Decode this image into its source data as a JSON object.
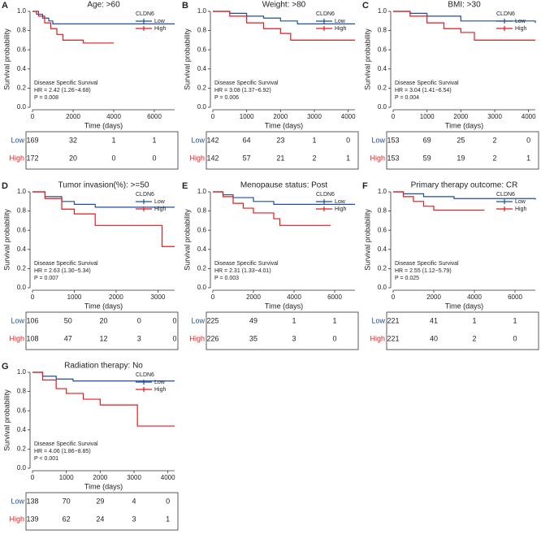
{
  "chart_data": [
    {
      "type": "line",
      "step": true,
      "label": "A",
      "title": "Age: >60",
      "xlabel": "Time (days)",
      "ylabel": "Survival probability",
      "legend_title": "CLDN6",
      "annotations": [
        "Disease Specific Survival",
        "HR = 2.42 (1.26−4.68)",
        "P = 0.008"
      ],
      "xlim": [
        0,
        7000
      ],
      "xticks": [
        0,
        2000,
        4000,
        6000
      ],
      "ylim": [
        0,
        1
      ],
      "yticks": [
        {
          "value": 0,
          "label": "0.0"
        },
        0.2,
        0.4,
        0.6,
        0.8,
        {
          "value": 1,
          "label": "1.0"
        }
      ],
      "series": [
        {
          "name": "Low",
          "color": "#1f4e9c",
          "x": [
            0,
            200,
            500,
            800,
            1000,
            7000
          ],
          "values": [
            1,
            0.97,
            0.93,
            0.9,
            0.87,
            0.87
          ]
        },
        {
          "name": "High",
          "color": "#e41a1c",
          "x": [
            0,
            300,
            600,
            900,
            1200,
            1500,
            2500,
            4000
          ],
          "values": [
            1,
            0.95,
            0.88,
            0.82,
            0.76,
            0.7,
            0.67,
            0.67
          ]
        }
      ],
      "risk_table": {
        "rows": [
          {
            "name": "Low",
            "values": [
              169,
              32,
              1,
              1
            ]
          },
          {
            "name": "High",
            "values": [
              172,
              20,
              0,
              0
            ]
          }
        ]
      }
    },
    {
      "type": "line",
      "step": true,
      "label": "B",
      "title": "Weight: >80",
      "xlabel": "Time (days)",
      "ylabel": "Survival probability",
      "legend_title": "CLDN6",
      "annotations": [
        "Disease Specific Survival",
        "HR = 3.08 (1.37−6.92)",
        "P = 0.006"
      ],
      "xlim": [
        0,
        4200
      ],
      "xticks": [
        0,
        1000,
        2000,
        3000,
        4000
      ],
      "ylim": [
        0,
        1
      ],
      "yticks": [
        {
          "value": 0,
          "label": "0.0"
        },
        0.2,
        0.4,
        0.6,
        0.8,
        {
          "value": 1,
          "label": "1.0"
        }
      ],
      "series": [
        {
          "name": "Low",
          "color": "#1f4e9c",
          "x": [
            0,
            500,
            1000,
            1500,
            2000,
            2500,
            4200
          ],
          "values": [
            1,
            0.98,
            0.95,
            0.93,
            0.9,
            0.87,
            0.87
          ]
        },
        {
          "name": "High",
          "color": "#e41a1c",
          "x": [
            0,
            500,
            1000,
            1500,
            2000,
            2300,
            4200
          ],
          "values": [
            1,
            0.95,
            0.88,
            0.82,
            0.77,
            0.7,
            0.7
          ]
        }
      ],
      "risk_table": {
        "rows": [
          {
            "name": "Low",
            "values": [
              142,
              64,
              23,
              1,
              0
            ]
          },
          {
            "name": "High",
            "values": [
              142,
              57,
              21,
              2,
              1
            ]
          }
        ]
      }
    },
    {
      "type": "line",
      "step": true,
      "label": "C",
      "title": "BMI: >30",
      "xlabel": "Time (days)",
      "ylabel": "Survival probability",
      "legend_title": "CLDN6",
      "annotations": [
        "Disease Specific Survival",
        "HR = 3.04 (1.41−6.54)",
        "P = 0.004"
      ],
      "xlim": [
        0,
        4200
      ],
      "xticks": [
        0,
        1000,
        2000,
        3000,
        4000
      ],
      "ylim": [
        0,
        1
      ],
      "yticks": [
        {
          "value": 0,
          "label": "0.0"
        },
        0.2,
        0.4,
        0.6,
        0.8,
        {
          "value": 1,
          "label": "1.0"
        }
      ],
      "series": [
        {
          "name": "Low",
          "color": "#1f4e9c",
          "x": [
            0,
            500,
            1000,
            2000,
            4200
          ],
          "values": [
            1,
            0.98,
            0.95,
            0.9,
            0.88
          ]
        },
        {
          "name": "High",
          "color": "#e41a1c",
          "x": [
            0,
            500,
            1000,
            1500,
            2000,
            2400,
            4200
          ],
          "values": [
            1,
            0.95,
            0.88,
            0.82,
            0.78,
            0.7,
            0.7
          ]
        }
      ],
      "risk_table": {
        "rows": [
          {
            "name": "Low",
            "values": [
              153,
              69,
              25,
              2,
              0
            ]
          },
          {
            "name": "High",
            "values": [
              153,
              59,
              19,
              2,
              1
            ]
          }
        ]
      }
    },
    {
      "type": "line",
      "step": true,
      "label": "D",
      "title": "Tumor invasion(%): >=50",
      "xlabel": "Time (days)",
      "ylabel": "Survival probability",
      "legend_title": "CLDN6",
      "annotations": [
        "Disease Specific Survival",
        "HR = 2.63 (1.30−5.34)",
        "P = 0.007"
      ],
      "xlim": [
        0,
        3400
      ],
      "xticks": [
        0,
        1000,
        2000,
        3000
      ],
      "ylim": [
        0,
        1
      ],
      "yticks": [
        {
          "value": 0,
          "label": "0.0"
        },
        0.2,
        0.4,
        0.6,
        0.8,
        {
          "value": 1,
          "label": "1.0"
        }
      ],
      "series": [
        {
          "name": "Low",
          "color": "#1f4e9c",
          "x": [
            0,
            300,
            700,
            1000,
            1500,
            3400
          ],
          "values": [
            1,
            0.95,
            0.9,
            0.87,
            0.84,
            0.84
          ]
        },
        {
          "name": "High",
          "color": "#e41a1c",
          "x": [
            0,
            300,
            700,
            1000,
            1500,
            3100,
            3400
          ],
          "values": [
            1,
            0.93,
            0.82,
            0.77,
            0.65,
            0.43,
            0.43
          ]
        }
      ],
      "risk_table": {
        "rows": [
          {
            "name": "Low",
            "values": [
              106,
              50,
              20,
              0,
              0
            ]
          },
          {
            "name": "High",
            "values": [
              108,
              47,
              12,
              3,
              0
            ]
          }
        ]
      }
    },
    {
      "type": "line",
      "step": true,
      "label": "E",
      "title": "Menopause status: Post",
      "xlabel": "Time (days)",
      "ylabel": "Survival probability",
      "legend_title": "CLDN6",
      "annotations": [
        "Disease Specific Survival",
        "HR = 2.31 (1.33−4.01)",
        "P = 0.003"
      ],
      "xlim": [
        0,
        7000
      ],
      "xticks": [
        0,
        2000,
        4000,
        6000
      ],
      "ylim": [
        0,
        1
      ],
      "yticks": [
        {
          "value": 0,
          "label": "0.0"
        },
        0.2,
        0.4,
        0.6,
        0.8,
        {
          "value": 1,
          "label": "1.0"
        }
      ],
      "series": [
        {
          "name": "Low",
          "color": "#1f4e9c",
          "x": [
            0,
            500,
            1000,
            2000,
            3000,
            7000
          ],
          "values": [
            1,
            0.97,
            0.94,
            0.9,
            0.87,
            0.87
          ]
        },
        {
          "name": "High",
          "color": "#e41a1c",
          "x": [
            0,
            500,
            1000,
            1500,
            2000,
            3000,
            3300,
            5800
          ],
          "values": [
            1,
            0.95,
            0.88,
            0.83,
            0.78,
            0.72,
            0.65,
            0.65
          ]
        }
      ],
      "risk_table": {
        "rows": [
          {
            "name": "Low",
            "values": [
              225,
              49,
              1,
              1
            ]
          },
          {
            "name": "High",
            "values": [
              226,
              35,
              3,
              0
            ]
          }
        ]
      }
    },
    {
      "type": "line",
      "step": true,
      "label": "F",
      "title": "Primary therapy outcome: CR",
      "xlabel": "Time (days)",
      "ylabel": "Survival probability",
      "legend_title": "CLDN6",
      "annotations": [
        "Disease Specific Survival",
        "HR = 2.55 (1.12−5.79)",
        "P = 0.025"
      ],
      "xlim": [
        0,
        7000
      ],
      "xticks": [
        0,
        2000,
        4000,
        6000
      ],
      "ylim": [
        0,
        1
      ],
      "yticks": [
        {
          "value": 0,
          "label": "0.0"
        },
        0.2,
        0.4,
        0.6,
        0.8,
        {
          "value": 1,
          "label": "1.0"
        }
      ],
      "series": [
        {
          "name": "Low",
          "color": "#1f4e9c",
          "x": [
            0,
            500,
            1500,
            3000,
            7000
          ],
          "values": [
            1,
            0.98,
            0.95,
            0.93,
            0.92
          ]
        },
        {
          "name": "High",
          "color": "#e41a1c",
          "x": [
            0,
            500,
            1000,
            1500,
            2000,
            4500
          ],
          "values": [
            1,
            0.95,
            0.9,
            0.85,
            0.81,
            0.81
          ]
        }
      ],
      "risk_table": {
        "rows": [
          {
            "name": "Low",
            "values": [
              221,
              41,
              1,
              1
            ]
          },
          {
            "name": "High",
            "values": [
              221,
              40,
              2,
              0
            ]
          }
        ]
      }
    },
    {
      "type": "line",
      "step": true,
      "label": "G",
      "title": "Radiation therapy: No",
      "xlabel": "Time (days)",
      "ylabel": "Survival probability",
      "legend_title": "CLDN6",
      "annotations": [
        "Disease Specific Survival",
        "HR = 4.06 (1.86−8.85)",
        "P < 0.001"
      ],
      "xlim": [
        0,
        4200
      ],
      "xticks": [
        0,
        1000,
        2000,
        3000,
        4000
      ],
      "ylim": [
        0,
        1
      ],
      "yticks": [
        {
          "value": 0,
          "label": "0.0"
        },
        0.2,
        0.4,
        0.6,
        0.8,
        {
          "value": 1,
          "label": "1.0"
        }
      ],
      "series": [
        {
          "name": "Low",
          "color": "#1f4e9c",
          "x": [
            0,
            300,
            700,
            1200,
            4200
          ],
          "values": [
            1,
            0.96,
            0.93,
            0.91,
            0.91
          ]
        },
        {
          "name": "High",
          "color": "#e41a1c",
          "x": [
            0,
            300,
            700,
            1000,
            1500,
            2000,
            3100,
            4200
          ],
          "values": [
            1,
            0.92,
            0.83,
            0.78,
            0.72,
            0.66,
            0.44,
            0.44
          ]
        }
      ],
      "risk_table": {
        "rows": [
          {
            "name": "Low",
            "values": [
              138,
              70,
              29,
              4,
              0
            ]
          },
          {
            "name": "High",
            "values": [
              139,
              62,
              24,
              3,
              1
            ]
          }
        ]
      }
    }
  ]
}
